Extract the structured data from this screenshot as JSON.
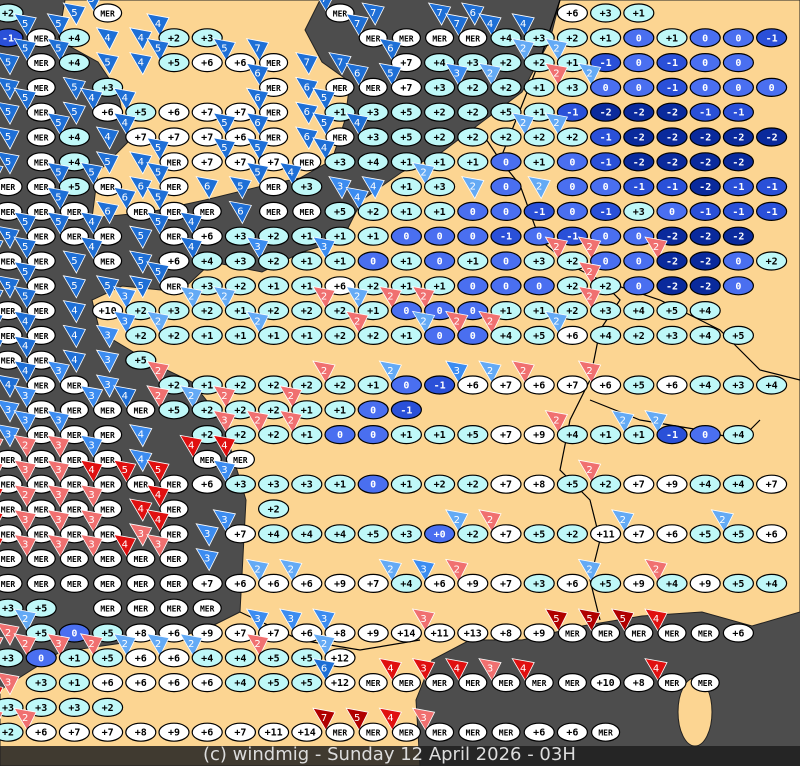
{
  "footer": {
    "credit": "(c) windmig - Sunday 12 April 2026 - 03H"
  },
  "colors": {
    "sea": "#4d4d4d",
    "land": "#fcd592",
    "border": "#000000",
    "cell_warm": "#ffffff",
    "cell_mild": "#bff8f8",
    "cell_zero": "#4a6ff0",
    "cell_minus1": "#2a50d8",
    "cell_minus2": "#0a2a9c",
    "wind_strong_blue": "#1e6fd6",
    "wind_blue": "#3c8cf0",
    "wind_light_blue": "#64aaf5",
    "wind_pink": "#f07070",
    "wind_red": "#e01010",
    "wind_dark_red": "#b00000"
  },
  "legend_codes": {
    "B": "strong blue",
    "b": "blue",
    "l": "light blue",
    "r": "pink",
    "R": "red",
    "D": "dark red"
  },
  "grid_rows": [
    "+2:5B . 5B MER:5B . . . . . . MER:7B 7B . 7B 6B . . +6 +3 +1 . . . .",
    "-1 MER:5B +4:5B 4B 4B +2:4B +3 . . . . MER:7B MER MER MER:7B +4:4B +3:4B +2 +1 0 +1 0 0 -1",
    "5B MER:5B +4:5B 5B 4B +5:5B +6 +6:5B MER:7B 7B 7B . +7:6B +4 +3 +2 +2:2l +1:2l -1 0 -1 0 0 .",
    "5B MER 5B +3 . . . . MER:6B 6B MER MER:6B +7:5B +3 +2:3b +2:2l +1 +3:2r 0:2l 0 -1 0 0 0",
    "5B MER:5B 5B +6:4B +5:4B +6 +7 +7 MER:6B 6B +1:5B +3 +5 +2 +2 +5 +1 -1 -2 -2 -2 -1 -1 .",
    "5B MER +4:5B 4B +7:4B +7 +7 +6:5B MER:6B 6B MER:5B +3:4B +5 +2 +2 +2 +2:2l +2:2l -1 -2 -2 -2 -2 -2",
    "5B MER +4 5B 4B MER:5B +7 +7:5B +7:5B MER +3:4B +4 +1 +1 +1 0 +1 0 -1 -2 -2 -2 -2 .",
    "MER:5B MER +5:5B MER:5B 6B MER:5B 6B 5B MER:5B +3:4B 3b 4b +1 +3:2l 2l 0 2l 0 0 -1 -1 -2 -1 -1",
    "MER MER MER:5B 6B MER:6B MER:5B MER 6B MER MER +5 +2:4b +1 +1 0 0 -1 0 -1 +3 0 -1 -1 -1",
    "5B MER:5B MER:5B MER:4B 5B MER:5B +6:4B +3 +2 +1 +1 +1 0 0 0 -1 0 -1 0 0 -2 -2 -2 .",
    "MER:5B MER:5B 5B MER:4B 5B +6 +4:4B +3 +2:3b +1 +1:3b 0 +1 0 +1 0 +3 +2:2r 0:2r 0 -2:2r -2 0 +2",
    "5B MER:5B 5B 5B 5B MER:5B +3 +2 +1 +1 +6 +2 +1 +1 0 0 0 +2 +2:2r 0 -2 -2 0 .",
    "MER:5B MER:5B 4B +10 +2:3b +3 +2:2l +1:2l +2 +2 +2:2r +1:2l 0:2r 0:2r 0 +1 +1 +2 +3:2r +4 +5 +4",
    "MER:4B MER:4B 4B 3b +2:3b +2:2l +1 +1 +1:2l +1 +2 +2:2r +1 0:2l 0:2r +4:2r +5 +6:2l +4 +2 +3 +4 +5",
    "MER:4B MER:4B 4B 3b +5 . . . . . . . . . . . . . . . . . . .",
    "4B MER:4B MER:3b 3b . +2:2r +1 +2 +2 +2 +2:2r +1 0:2l -1 +6:3b +7:2l +6:2r +7 +6:2r +5 +6 +4 +3 +4",
    "3b MER:3b MER MER:3b MER:4B +5:2r +2:2l +2:2r +2 +1:2r +1 0 -1 . . . . . . . . . . .",
    "3b MER:3b MER:3b MER 4b . +2 +2:3r +2:2r +1:2r 0 0 +1 +1 +5 +7 +9 +4:2r +1 +1:2l -1:2l 0 +4 .",
    "MER:3r MER:2r MER:3r MER:3b 4b . MER:4R MER:4R . . . . . . . . . . . . . . . .",
    "MER:3r MER:3r MER:3r MER:4R MER:5R MER:5R +6 +3:3b +3 +3 +1 0 +1 +2 +2 +7 +8 +5 +2:2r +7 +9 +4 +4 +7",
    "MER:3R MER:2r MER:3r MER:3r 4R MER:4R . . +2 . . . . . . . . . . . . . . .",
    "MER:3R MER:3r MER:3r MER:3r 3r MER:4R 3b +7:3b +4 +4 +4 +5 +3 +0 +2:2l +7:2r +5 +2 +11 +7:2l +6 +5 +5:2l +6",
    "MER:4R MER:3r MER:3r MER:3r MER:4R MER:3r 3b . . . . . . . . . . . . . . . . .",
    "MER MER MER MER MER MER +7 +6 +6:2l +6:2l +9 +7 +4:2l +6:3b +9:2r +7 +3 +6 +5:2l +9 +4:2r +9 +5 +4",
    "+3 +5 . MER MER MER MER . . . . . . . . . . . . . . . . .",
    "2r +5:2l 0 +5 +8 +6 +9 +7 +7:3b +6:3b +8:3b +9 +14 +11:3r +13 +8 +9 MER:5D MER:5D MER:5D MER:4R MER +6 .",
    "+3:2r 0:2r +1:3r +5:2r +6:2l +6:2l +4:2l +4 +5:2r +5 +12:2l . . . . . . . . . . . . .",
    "3r +3 +1 +6 +6 +6 +6 +4 +5 +5 +12:6B MER MER:4R MER:3R MER:4R MER:3r MER:4R MER +10 +8 MER:4R MER .",
    "+3:4R +3 +3 +2 . . . . . . . . . . . . . . . . . . . .",
    "+2:2r +6:2r +7 +7 +8 +9 +6 +7 +11 +14 MER:7D MER:5D MER:4R MER:3r MER MER +6 +6 MER . . . . ."
  ]
}
